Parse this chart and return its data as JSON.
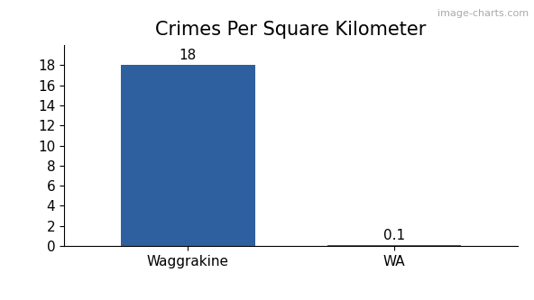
{
  "categories": [
    "Waggrakine",
    "WA"
  ],
  "values": [
    18,
    0.1
  ],
  "bar_colors": [
    "#2e5f9e",
    "#2e5f9e"
  ],
  "title": "Crimes Per Square Kilometer",
  "title_fontsize": 15,
  "annotation_fontsize": 11,
  "tick_fontsize": 11,
  "ylim": [
    0,
    20
  ],
  "yticks": [
    0,
    2,
    4,
    6,
    8,
    10,
    12,
    14,
    16,
    18
  ],
  "background_color": "#ffffff",
  "bar_width": 0.65,
  "annotations": [
    "18",
    "0.1"
  ],
  "watermark": "image-charts.com",
  "watermark_fontsize": 8,
  "watermark_color": "#aaaaaa"
}
